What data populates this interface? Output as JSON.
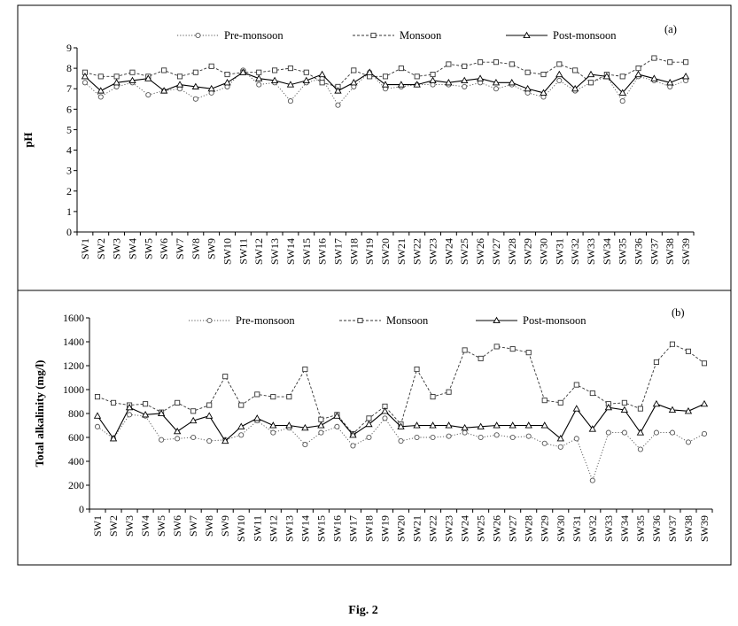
{
  "figure": {
    "caption": "Fig. 2"
  },
  "chart_data": [
    {
      "type": "line",
      "panel_label": "(a)",
      "title": "",
      "xlabel": "",
      "ylabel": "pH",
      "ylim": [
        0,
        9
      ],
      "yticks": [
        0,
        1,
        2,
        3,
        4,
        5,
        6,
        7,
        8,
        9
      ],
      "grid": false,
      "legend": "top",
      "categories": [
        "SW1",
        "SW2",
        "SW3",
        "SW4",
        "SW5",
        "SW6",
        "SW7",
        "SW8",
        "SW9",
        "SW10",
        "SW11",
        "SW12",
        "SW13",
        "SW14",
        "SW15",
        "SW16",
        "SW17",
        "SW18",
        "SW19",
        "SW20",
        "SW21",
        "SW22",
        "SW23",
        "SW24",
        "SW25",
        "SW26",
        "SW27",
        "SW28",
        "SW29",
        "SW30",
        "SW31",
        "SW32",
        "SW33",
        "SW34",
        "SW35",
        "SW36",
        "SW37",
        "SW38",
        "SW39"
      ],
      "series": [
        {
          "name": "Pre-monsoon",
          "style": "dotted",
          "marker": "circle",
          "color": "#555555",
          "values": [
            7.3,
            6.6,
            7.1,
            7.3,
            6.7,
            6.9,
            7.0,
            6.5,
            6.8,
            7.1,
            7.9,
            7.2,
            7.3,
            6.4,
            7.3,
            7.5,
            6.2,
            7.1,
            7.8,
            7.0,
            7.1,
            7.2,
            7.2,
            7.2,
            7.1,
            7.3,
            7.0,
            7.2,
            6.8,
            6.6,
            7.4,
            6.9,
            7.3,
            7.6,
            6.4,
            7.6,
            7.4,
            7.1,
            7.4
          ]
        },
        {
          "name": "Monsoon",
          "style": "dashed",
          "marker": "square",
          "color": "#333333",
          "values": [
            7.8,
            7.6,
            7.6,
            7.8,
            7.6,
            7.9,
            7.6,
            7.8,
            8.1,
            7.7,
            7.8,
            7.8,
            7.9,
            8.0,
            7.8,
            7.3,
            7.1,
            7.9,
            7.6,
            7.6,
            8.0,
            7.6,
            7.7,
            8.2,
            8.1,
            8.3,
            8.3,
            8.2,
            7.8,
            7.7,
            8.2,
            7.9,
            7.3,
            7.7,
            7.6,
            8.0,
            8.5,
            8.3,
            8.3
          ]
        },
        {
          "name": "Post-monsoon",
          "style": "solid",
          "marker": "triangle",
          "color": "#000000",
          "values": [
            7.6,
            6.9,
            7.3,
            7.4,
            7.5,
            6.9,
            7.2,
            7.1,
            7.0,
            7.3,
            7.8,
            7.5,
            7.4,
            7.2,
            7.4,
            7.7,
            6.9,
            7.3,
            7.8,
            7.2,
            7.2,
            7.2,
            7.4,
            7.3,
            7.4,
            7.5,
            7.3,
            7.3,
            7.0,
            6.8,
            7.7,
            7.0,
            7.7,
            7.6,
            6.8,
            7.7,
            7.5,
            7.3,
            7.6
          ]
        }
      ]
    },
    {
      "type": "line",
      "panel_label": "(b)",
      "title": "",
      "xlabel": "",
      "ylabel": "Total alkalinity (mg/l)",
      "ylim": [
        0,
        1600
      ],
      "yticks": [
        0,
        200,
        400,
        600,
        800,
        1000,
        1200,
        1400,
        1600
      ],
      "grid": false,
      "legend": "top",
      "categories": [
        "SW1",
        "SW2",
        "SW3",
        "SW4",
        "SW5",
        "SW6",
        "SW7",
        "SW8",
        "SW9",
        "SW10",
        "SW11",
        "SW12",
        "SW13",
        "SW14",
        "SW15",
        "SW16",
        "SW17",
        "SW18",
        "SW19",
        "SW20",
        "SW21",
        "SW22",
        "SW23",
        "SW24",
        "SW25",
        "SW26",
        "SW27",
        "SW28",
        "SW29",
        "SW30",
        "SW31",
        "SW32",
        "SW33",
        "SW34",
        "SW35",
        "SW36",
        "SW37",
        "SW38",
        "SW39"
      ],
      "series": [
        {
          "name": "Pre-monsoon",
          "style": "dotted",
          "marker": "circle",
          "color": "#555555",
          "values": [
            690,
            590,
            790,
            780,
            580,
            590,
            600,
            570,
            580,
            620,
            740,
            640,
            680,
            540,
            640,
            690,
            530,
            600,
            760,
            570,
            600,
            600,
            610,
            640,
            600,
            620,
            600,
            610,
            550,
            520,
            590,
            240,
            640,
            640,
            500,
            640,
            640,
            560,
            630
          ]
        },
        {
          "name": "Monsoon",
          "style": "dashed",
          "marker": "square",
          "color": "#333333",
          "values": [
            940,
            890,
            870,
            880,
            810,
            890,
            820,
            870,
            1110,
            870,
            960,
            940,
            940,
            1170,
            750,
            790,
            630,
            760,
            860,
            710,
            1170,
            940,
            980,
            1330,
            1260,
            1360,
            1340,
            1310,
            910,
            890,
            1040,
            970,
            880,
            890,
            840,
            1230,
            1380,
            1320,
            1220
          ]
        },
        {
          "name": "Post-monsoon",
          "style": "solid",
          "marker": "triangle",
          "color": "#000000",
          "values": [
            780,
            590,
            850,
            790,
            800,
            650,
            740,
            780,
            570,
            690,
            760,
            700,
            700,
            680,
            700,
            780,
            620,
            710,
            820,
            690,
            700,
            700,
            700,
            680,
            690,
            700,
            700,
            700,
            700,
            590,
            840,
            670,
            850,
            830,
            640,
            880,
            830,
            820,
            880
          ]
        }
      ]
    }
  ]
}
